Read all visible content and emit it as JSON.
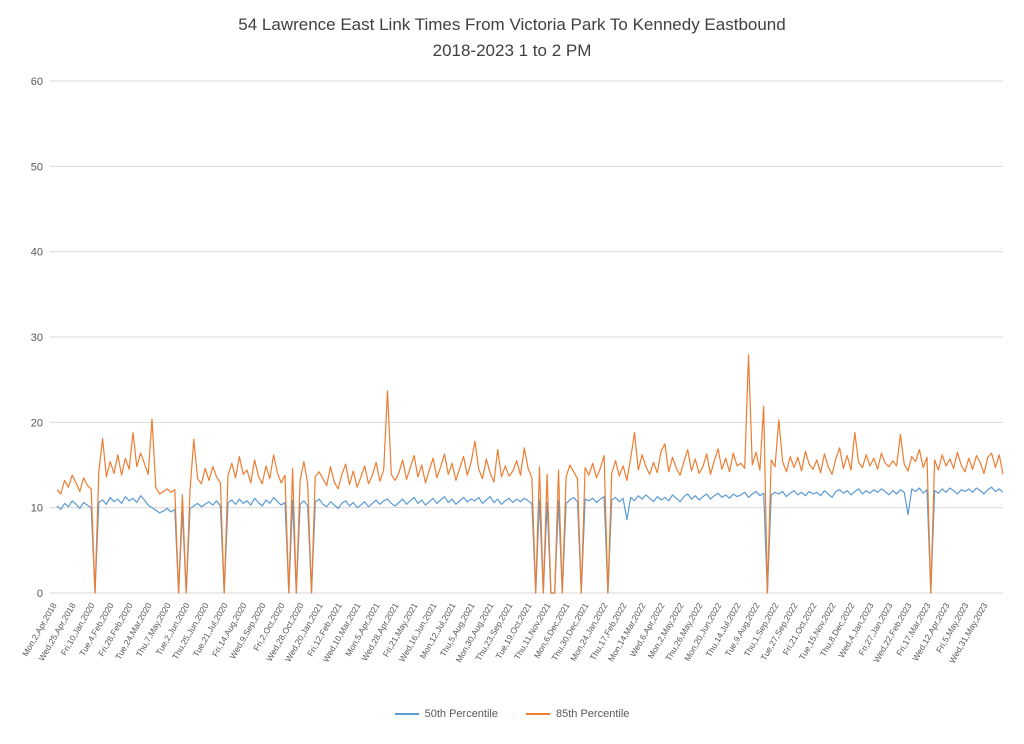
{
  "title": {
    "line1": "54 Lawrence East Link Times From Victoria Park To Kennedy Eastbound",
    "line2": "2018-2023 1 to 2 PM"
  },
  "colors": {
    "grid": "#D9D9D9",
    "axis_text": "#595959",
    "title_text": "#404040"
  },
  "chart_data": {
    "type": "line",
    "title": "54 Lawrence East Link Times From Victoria Park To Kennedy Eastbound 2018-2023 1 to 2 PM",
    "xlabel": "",
    "ylabel": "",
    "ylim": [
      0,
      60
    ],
    "y_ticks": [
      0,
      10,
      20,
      30,
      40,
      50,
      60
    ],
    "grid": true,
    "legend_position": "bottom",
    "points_per_tick": 5,
    "x_tick_labels": [
      "Mon,2,Apr,2018",
      "Wed,25,Apr,2018",
      "Fri,10,Jan,2020",
      "Tue,4,Feb,2020",
      "Fri,28,Feb,2020",
      "Tue,24,Mar,2020",
      "Thu,7,May,2020",
      "Tue,2,Jun,2020",
      "Thu,25,Jun,2020",
      "Tue,21,Jul,2020",
      "Fri,14,Aug,2020",
      "Wed,9,Sep,2020",
      "Fri,2,Oct,2020",
      "Wed,28,Oct,2020",
      "Wed,20,Jan,2021",
      "Fri,12,Feb,2021",
      "Wed,10,Mar,2021",
      "Mon,5,Apr,2021",
      "Wed,28,Apr,2021",
      "Fri,21,May,2021",
      "Wed,16,Jun,2021",
      "Mon,12,Jul,2021",
      "Thu,5,Aug,2021",
      "Mon,30,Aug,2021",
      "Thu,23,Sep,2021",
      "Tue,19,Oct,2021",
      "Thu,11,Nov,2021",
      "Mon,6,Dec,2021",
      "Thu,30,Dec,2021",
      "Mon,24,Jan,2022",
      "Thu,17,Feb,2022",
      "Mon,14,Mar,2022",
      "Wed,6,Apr,2022",
      "Mon,2,May,2022",
      "Thu,26,May,2022",
      "Mon,20,Jun,2022",
      "Thu,14,Jul,2022",
      "Tue,9,Aug,2022",
      "Thu,1,Sep,2022",
      "Tue,27,Sep,2022",
      "Fri,21,Oct,2022",
      "Tue,15,Nov,2022",
      "Thu,8,Dec,2022",
      "Wed,4,Jan,2023",
      "Fri,27,Jan,2023",
      "Wed,22,Feb,2023",
      "Fri,17,Mar,2023",
      "Wed,12,Apr,2023",
      "Fri,5,May,2023",
      "Wed,31,May,2023"
    ],
    "series": [
      {
        "name": "50th Percentile",
        "color": "#5B9BD5",
        "values": [
          10.2,
          9.8,
          10.5,
          10.1,
          10.8,
          10.4,
          9.9,
          10.6,
          10.3,
          10.0,
          0,
          10.6,
          10.9,
          10.4,
          11.2,
          10.7,
          11.0,
          10.5,
          11.3,
          10.8,
          11.1,
          10.6,
          11.4,
          10.9,
          10.3,
          10.0,
          9.7,
          9.4,
          9.6,
          9.9,
          9.5,
          9.8,
          0,
          9.6,
          0,
          9.9,
          10.2,
          10.5,
          10.1,
          10.4,
          10.7,
          10.3,
          10.8,
          10.2,
          0,
          10.6,
          10.9,
          10.4,
          11.0,
          10.5,
          10.8,
          10.3,
          11.1,
          10.6,
          10.2,
          10.9,
          10.5,
          11.2,
          10.7,
          10.3,
          10.6,
          0,
          10.9,
          0,
          10.4,
          10.8,
          10.2,
          0,
          10.7,
          11.0,
          10.4,
          10.1,
          10.7,
          10.3,
          9.9,
          10.5,
          10.8,
          10.2,
          10.6,
          10.0,
          10.3,
          10.7,
          10.1,
          10.5,
          10.9,
          10.4,
          10.8,
          11.0,
          10.5,
          10.2,
          10.6,
          11.0,
          10.4,
          10.8,
          11.2,
          10.5,
          10.9,
          10.3,
          10.7,
          11.1,
          10.5,
          10.9,
          11.3,
          10.6,
          11.0,
          10.4,
          10.8,
          11.2,
          10.7,
          11.0,
          10.8,
          11.2,
          10.5,
          10.9,
          11.3,
          10.6,
          11.0,
          10.4,
          10.8,
          11.1,
          10.6,
          11.0,
          10.7,
          11.1,
          10.8,
          10.5,
          0,
          10.9,
          0,
          10.6,
          0,
          0,
          10.8,
          0,
          10.5,
          10.9,
          11.2,
          10.7,
          0,
          11.0,
          10.8,
          11.1,
          10.6,
          11.0,
          11.3,
          0,
          10.9,
          11.2,
          10.7,
          11.1,
          8.6,
          11.2,
          10.8,
          11.4,
          11.0,
          11.5,
          11.1,
          10.7,
          11.3,
          10.9,
          11.2,
          10.8,
          11.5,
          11.1,
          10.7,
          11.3,
          11.6,
          11.0,
          11.4,
          10.9,
          11.3,
          11.6,
          11.0,
          11.4,
          11.7,
          11.2,
          11.5,
          11.1,
          11.6,
          11.3,
          11.5,
          11.8,
          11.2,
          11.6,
          11.9,
          11.4,
          11.7,
          0,
          11.5,
          11.8,
          11.6,
          11.9,
          11.3,
          11.7,
          12.0,
          11.5,
          11.8,
          11.4,
          11.9,
          11.6,
          11.8,
          11.4,
          12.0,
          11.6,
          11.2,
          11.9,
          12.1,
          11.7,
          12.0,
          11.5,
          11.9,
          12.2,
          11.6,
          12.0,
          11.7,
          12.1,
          11.8,
          12.2,
          11.9,
          11.5,
          12.0,
          11.6,
          12.1,
          11.8,
          9.2,
          12.2,
          11.9,
          12.3,
          11.7,
          12.1,
          0,
          12.0,
          11.7,
          12.2,
          11.8,
          12.3,
          12.0,
          11.6,
          12.1,
          11.9,
          12.2,
          11.8,
          12.3,
          12.0,
          11.6,
          12.1,
          12.4,
          11.9,
          12.2,
          11.8
        ]
      },
      {
        "name": "85th Percentile",
        "color": "#ED7D31",
        "values": [
          12.1,
          11.6,
          13.2,
          12.4,
          13.8,
          12.9,
          11.9,
          13.5,
          12.6,
          12.2,
          0,
          14.2,
          18.1,
          13.6,
          15.4,
          14.0,
          16.2,
          13.8,
          15.8,
          14.5,
          18.8,
          14.8,
          16.4,
          15.2,
          13.9,
          20.4,
          12.4,
          11.6,
          11.9,
          12.2,
          11.8,
          12.1,
          0,
          11.5,
          0,
          12.0,
          18.0,
          13.4,
          12.8,
          14.6,
          13.2,
          14.8,
          13.6,
          12.9,
          0,
          13.8,
          15.2,
          13.5,
          16.0,
          13.9,
          14.4,
          12.9,
          15.6,
          13.7,
          12.8,
          14.9,
          13.4,
          16.2,
          14.1,
          12.9,
          13.8,
          0,
          14.6,
          0,
          13.2,
          15.4,
          12.8,
          0,
          13.6,
          14.2,
          13.4,
          12.6,
          14.8,
          13.0,
          12.2,
          13.9,
          15.1,
          12.7,
          14.3,
          12.4,
          13.6,
          14.9,
          12.8,
          13.8,
          15.3,
          13.1,
          14.4,
          23.7,
          13.9,
          13.2,
          14.1,
          15.6,
          13.3,
          14.7,
          16.1,
          13.6,
          15.0,
          12.9,
          14.4,
          15.8,
          13.5,
          14.8,
          16.3,
          13.9,
          15.2,
          13.2,
          14.6,
          16.0,
          13.8,
          15.3,
          17.8,
          14.5,
          13.4,
          15.7,
          14.1,
          13.0,
          16.8,
          13.6,
          14.9,
          13.7,
          14.3,
          15.5,
          13.8,
          17.0,
          14.6,
          13.5,
          0,
          14.8,
          0,
          13.9,
          0,
          0,
          14.4,
          0,
          13.6,
          15.0,
          14.2,
          13.4,
          0,
          14.7,
          13.8,
          15.2,
          13.5,
          14.6,
          16.1,
          0,
          14.0,
          15.5,
          13.7,
          14.9,
          13.2,
          15.8,
          18.8,
          14.4,
          16.2,
          14.8,
          13.9,
          15.3,
          14.1,
          16.6,
          17.5,
          14.2,
          15.9,
          14.6,
          13.8,
          15.4,
          16.8,
          14.3,
          15.7,
          14.0,
          14.8,
          16.3,
          13.9,
          15.5,
          16.9,
          14.5,
          15.8,
          14.2,
          16.4,
          14.9,
          15.2,
          14.6,
          27.9,
          15.0,
          16.5,
          14.4,
          21.9,
          0,
          15.6,
          14.8,
          20.3,
          15.4,
          14.2,
          16.0,
          14.7,
          15.9,
          14.3,
          16.6,
          15.1,
          14.5,
          15.6,
          14.1,
          16.3,
          14.8,
          13.9,
          15.7,
          17.0,
          14.6,
          16.1,
          14.4,
          18.8,
          15.3,
          14.7,
          16.2,
          14.9,
          15.8,
          14.5,
          16.4,
          15.2,
          14.8,
          15.5,
          14.9,
          18.6,
          15.1,
          14.3,
          16.0,
          15.4,
          16.8,
          14.7,
          15.9,
          0,
          15.6,
          14.4,
          16.2,
          14.9,
          15.7,
          14.6,
          16.5,
          15.0,
          14.2,
          15.8,
          14.5,
          16.1,
          15.3,
          14.0,
          15.9,
          16.4,
          14.7,
          16.2,
          13.9
        ]
      }
    ]
  }
}
